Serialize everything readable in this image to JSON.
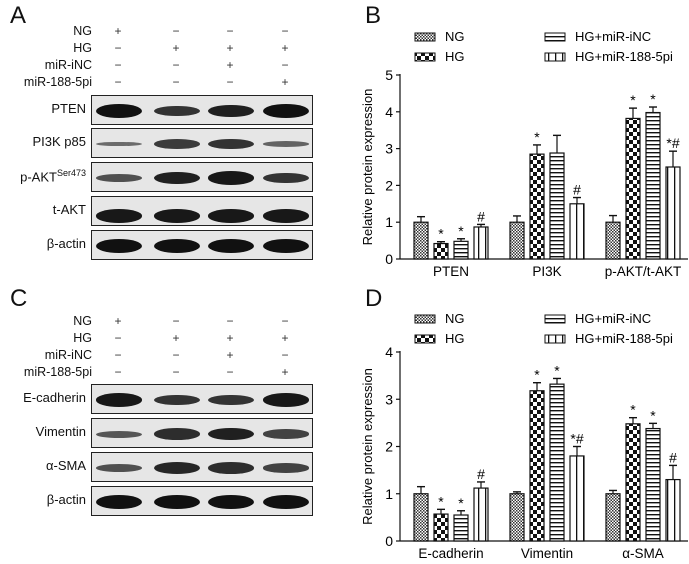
{
  "panels": {
    "A": {
      "letter": "A"
    },
    "B": {
      "letter": "B"
    },
    "C": {
      "letter": "C"
    },
    "D": {
      "letter": "D"
    }
  },
  "conditions": {
    "rows": [
      {
        "label": "NG",
        "signs": [
          "+",
          "−",
          "−",
          "−"
        ]
      },
      {
        "label": "HG",
        "signs": [
          "−",
          "+",
          "+",
          "+"
        ]
      },
      {
        "label": "miR-iNC",
        "signs": [
          "−",
          "−",
          "+",
          "−"
        ]
      },
      {
        "label": "miR-188-5pi",
        "signs": [
          "−",
          "−",
          "−",
          "+"
        ]
      }
    ]
  },
  "blots_A": [
    {
      "label": "PTEN",
      "sup": "",
      "intensity": [
        1.0,
        0.75,
        0.9,
        1.0
      ]
    },
    {
      "label": "PI3K p85",
      "sup": "",
      "intensity": [
        0.35,
        0.7,
        0.75,
        0.4
      ]
    },
    {
      "label": "p-AKT",
      "sup": "Ser473",
      "intensity": [
        0.55,
        0.9,
        0.95,
        0.75
      ]
    },
    {
      "label": "t-AKT",
      "sup": "",
      "intensity": [
        0.95,
        0.95,
        0.95,
        0.95
      ]
    },
    {
      "label": "β-actin",
      "sup": "",
      "intensity": [
        1.0,
        1.0,
        1.0,
        1.0
      ]
    }
  ],
  "blots_C": [
    {
      "label": "E-cadherin",
      "sup": "",
      "intensity": [
        0.95,
        0.75,
        0.75,
        0.95
      ]
    },
    {
      "label": "Vimentin",
      "sup": "",
      "intensity": [
        0.5,
        0.8,
        0.9,
        0.65
      ]
    },
    {
      "label": "α-SMA",
      "sup": "",
      "intensity": [
        0.55,
        0.85,
        0.8,
        0.65
      ]
    },
    {
      "label": "β-actin",
      "sup": "",
      "intensity": [
        1.0,
        1.0,
        1.0,
        1.0
      ]
    }
  ],
  "legend": [
    "NG",
    "HG",
    "HG+miR-iNC",
    "HG+miR-188-5pi"
  ],
  "chart_data": [
    {
      "type": "bar",
      "title": "",
      "panel": "B",
      "xlabel": "",
      "ylabel": "Relative protein expression",
      "ylim": [
        0,
        5
      ],
      "yticks": [
        0,
        1,
        2,
        3,
        4,
        5
      ],
      "categories": [
        "PTEN",
        "PI3K",
        "p-AKT/t-AKT"
      ],
      "legend_position": "top",
      "grid": false,
      "series": [
        {
          "name": "NG",
          "values": [
            1.0,
            1.0,
            1.0
          ],
          "errors": [
            0.15,
            0.17,
            0.18
          ],
          "annotations": [
            "",
            "",
            ""
          ]
        },
        {
          "name": "HG",
          "values": [
            0.42,
            2.85,
            3.82
          ],
          "errors": [
            0.05,
            0.25,
            0.28
          ],
          "annotations": [
            "*",
            "*",
            "*"
          ]
        },
        {
          "name": "HG+miR-iNC",
          "values": [
            0.48,
            2.88,
            3.98
          ],
          "errors": [
            0.07,
            0.48,
            0.15
          ],
          "annotations": [
            "*",
            "",
            "*"
          ]
        },
        {
          "name": "HG+miR-188-5pi",
          "values": [
            0.87,
            1.5,
            2.5
          ],
          "errors": [
            0.07,
            0.17,
            0.43
          ],
          "annotations": [
            "#",
            "#",
            "*#"
          ]
        }
      ]
    },
    {
      "type": "bar",
      "title": "",
      "panel": "D",
      "xlabel": "",
      "ylabel": "Relative protein expression",
      "ylim": [
        0,
        4
      ],
      "yticks": [
        0,
        1,
        2,
        3,
        4
      ],
      "categories": [
        "E-cadherin",
        "Vimentin",
        "α-SMA"
      ],
      "legend_position": "top",
      "grid": false,
      "series": [
        {
          "name": "NG",
          "values": [
            1.0,
            1.0,
            1.0
          ],
          "errors": [
            0.15,
            0.04,
            0.07
          ],
          "annotations": [
            "",
            "",
            ""
          ]
        },
        {
          "name": "HG",
          "values": [
            0.57,
            3.18,
            2.48
          ],
          "errors": [
            0.1,
            0.17,
            0.13
          ],
          "annotations": [
            "*",
            "*",
            "*"
          ]
        },
        {
          "name": "HG+miR-iNC",
          "values": [
            0.55,
            3.32,
            2.38
          ],
          "errors": [
            0.09,
            0.12,
            0.11
          ],
          "annotations": [
            "*",
            "*",
            "*"
          ]
        },
        {
          "name": "HG+miR-188-5pi",
          "values": [
            1.12,
            1.8,
            1.3
          ],
          "errors": [
            0.13,
            0.2,
            0.3
          ],
          "annotations": [
            "#",
            "*#",
            "#"
          ]
        }
      ]
    }
  ]
}
